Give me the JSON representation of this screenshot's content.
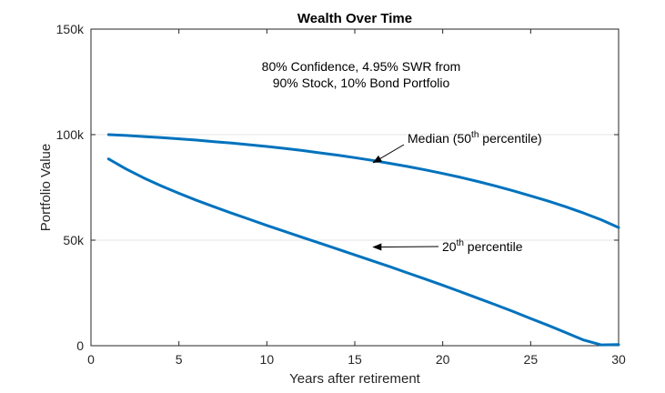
{
  "chart_data": {
    "type": "line",
    "title": "Wealth Over Time",
    "xlabel": "Years after retirement",
    "ylabel": "Portfolio Value",
    "xlim": [
      0,
      30
    ],
    "ylim": [
      0,
      150000
    ],
    "xticks": [
      0,
      5,
      10,
      15,
      20,
      25,
      30
    ],
    "yticks": [
      0,
      50000,
      100000,
      150000
    ],
    "xtick_labels": [
      "0",
      "5",
      "10",
      "15",
      "20",
      "25",
      "30"
    ],
    "ytick_labels": [
      "0",
      "50k",
      "100k",
      "150k"
    ],
    "grid": true,
    "line_color": "#0072BD",
    "annotation_lines": [
      "80% Confidence, 4.95% SWR from",
      "90% Stock, 10% Bond Portfolio"
    ],
    "series": [
      {
        "x": [
          1,
          2,
          3,
          4,
          5,
          6,
          7,
          8,
          9,
          10,
          11,
          12,
          13,
          14,
          15,
          16,
          17,
          18,
          19,
          20,
          21,
          22,
          23,
          24,
          25,
          26,
          27,
          28,
          29,
          30
        ],
        "values": [
          100000,
          99600,
          99100,
          98600,
          98000,
          97400,
          96700,
          96000,
          95200,
          94400,
          93500,
          92500,
          91400,
          90300,
          89100,
          87800,
          86400,
          84900,
          83300,
          81600,
          79800,
          77800,
          75700,
          73400,
          71000,
          68500,
          65800,
          62900,
          59700,
          56000
        ]
      },
      {
        "x": [
          1,
          2,
          3,
          4,
          5,
          6,
          7,
          8,
          9,
          10,
          11,
          12,
          13,
          14,
          15,
          16,
          17,
          18,
          19,
          20,
          21,
          22,
          23,
          24,
          25,
          26,
          27,
          28,
          29,
          30
        ],
        "values": [
          88500,
          83700,
          79500,
          75700,
          72200,
          68900,
          65800,
          62800,
          59900,
          57000,
          54200,
          51400,
          48600,
          45800,
          43000,
          40200,
          37400,
          34500,
          31600,
          28600,
          25600,
          22500,
          19400,
          16200,
          12900,
          9600,
          6200,
          2700,
          400,
          500
        ]
      }
    ],
    "labels": [
      {
        "main": "Median (50",
        "sup": "th",
        "tail": " percentile)",
        "target_x": 16,
        "target_y": 85000
      },
      {
        "main": "20",
        "sup": "th",
        "tail": " percentile",
        "target_x": 16,
        "target_y": 45000
      }
    ]
  }
}
